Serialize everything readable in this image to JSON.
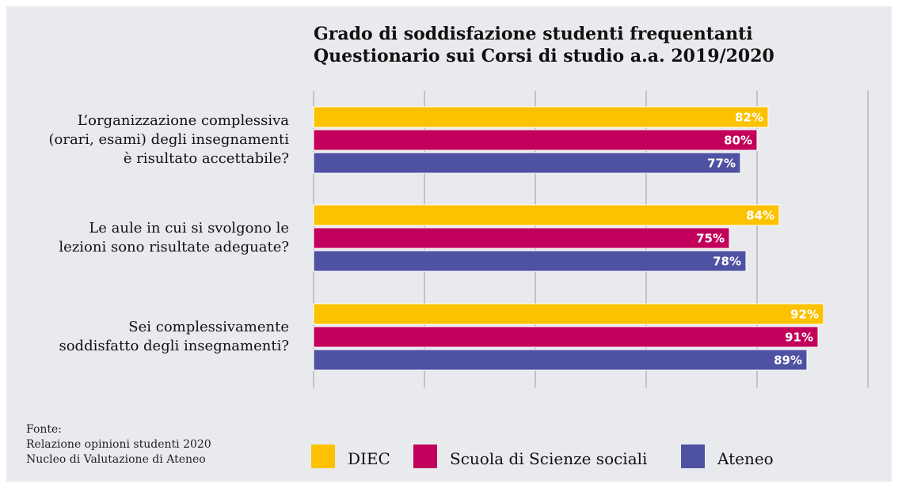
{
  "chart_data": {
    "type": "bar",
    "orientation": "horizontal",
    "title": "Grado di soddisfazione studenti frequentanti",
    "subtitle": "Questionario sui Corsi di studio a.a. 2019/2020",
    "categories": [
      "L’organizzazione complessiva\n(orari, esami) degli insegnamenti\nè risultato accettabile?",
      "Le aule in cui si svolgono le\nlezioni sono risultate adeguate?",
      "Sei complessivamente\nsoddisfatto degli insegnamenti?"
    ],
    "series": [
      {
        "name": "DIEC",
        "color": "#fcc200",
        "values": [
          82,
          84,
          92
        ],
        "value_labels": [
          "82%",
          "84%",
          "92%"
        ]
      },
      {
        "name": "Scuola di Scienze sociali",
        "color": "#c2005b",
        "values": [
          80,
          75,
          91
        ],
        "value_labels": [
          "80%",
          "75%",
          "91%"
        ]
      },
      {
        "name": "Ateneo",
        "color": "#4f51a3",
        "values": [
          77,
          78,
          89
        ],
        "value_labels": [
          "77%",
          "78%",
          "89%"
        ]
      }
    ],
    "xlim": [
      0,
      100
    ],
    "xticks": [
      0,
      20,
      40,
      60,
      80,
      100
    ],
    "grid": true,
    "source": "Fonte:\nRelazione opinioni studenti 2020\nNucleo di Valutazione di Ateneo"
  }
}
